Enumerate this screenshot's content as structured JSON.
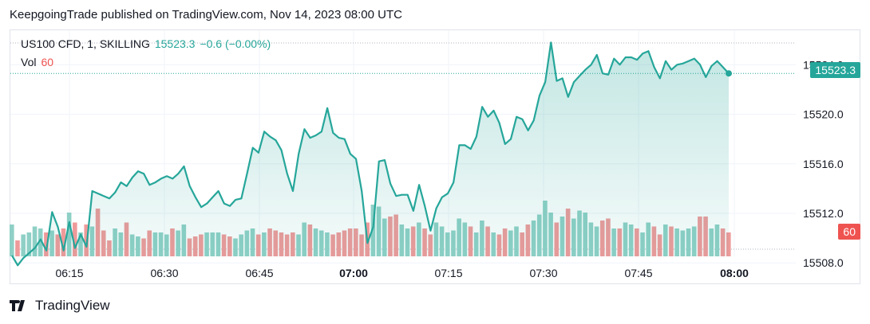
{
  "publisher_line": "KeepgoingTrade published on TradingView.com, Nov 14, 2023 08:00 UTC",
  "legend": {
    "symbol": "US100 CFD, 1, SKILLING",
    "last": "15523.3",
    "change": "−0.6 (−0.00%)"
  },
  "volume_legend": {
    "label": "Vol",
    "value": "60"
  },
  "price_label": "15523.3",
  "volume_label": "60",
  "brand": "TradingView",
  "colors": {
    "line": "#26a69a",
    "up_vol": "#8fd0c6",
    "down_vol": "#ef9a9a",
    "price_tag": "#26a69a",
    "vol_tag": "#ef5350"
  },
  "chart_data": {
    "type": "area",
    "x_axis": "time (UTC), 1-minute bars",
    "x_ticks": [
      "06:15",
      "06:30",
      "06:45",
      "07:00",
      "07:15",
      "07:30",
      "07:45",
      "08:00"
    ],
    "y_ticks": [
      15508.0,
      15512.0,
      15516.0,
      15520.0,
      15524.0
    ],
    "ylim": [
      15507.5,
      15525.5
    ],
    "series": [
      {
        "values": [
          15508.6,
          15507.8,
          15508.4,
          15508.8,
          15509.2,
          15509.9,
          15509.0,
          15512.1,
          15510.9,
          15509.0,
          15511.3,
          15509.2,
          15510.3,
          15509.3,
          15513.8,
          15513.6,
          15513.4,
          15513.2,
          15513.7,
          15514.5,
          15514.2,
          15514.9,
          15515.4,
          15515.2,
          15514.3,
          15514.5,
          15514.8,
          15515.0,
          15514.8,
          15515.2,
          15515.8,
          15514.2,
          15513.3,
          15512.5,
          15512.8,
          15513.3,
          15513.8,
          15512.8,
          15512.6,
          15513.1,
          15513.2,
          15515.2,
          15517.3,
          15516.9,
          15518.6,
          15518.2,
          15517.9,
          15517.1,
          15515.2,
          15513.8,
          15516.8,
          15518.8,
          15518.1,
          15518.3,
          15518.6,
          15520.5,
          15518.5,
          15518.1,
          15518.0,
          15516.8,
          15516.4,
          15513.8,
          15509.6,
          15510.9,
          15516.2,
          15516.3,
          15514.4,
          15513.4,
          15513.5,
          15513.5,
          15512.2,
          15514.3,
          15512.6,
          15510.6,
          15512.4,
          15513.3,
          15513.6,
          15514.5,
          15517.5,
          15517.5,
          15517.2,
          15518.2,
          15520.6,
          15519.8,
          15520.3,
          15519.3,
          15517.6,
          15518.0,
          15519.8,
          15519.6,
          15518.7,
          15519.5,
          15521.5,
          15522.6,
          15525.8,
          15522.7,
          15522.9,
          15521.4,
          15522.6,
          15523.1,
          15523.6,
          15524.0,
          15524.8,
          15523.3,
          15523.2,
          15524.5,
          15524.0,
          15524.6,
          15524.6,
          15524.4,
          15524.9,
          15525.1,
          15523.8,
          15522.9,
          15524.3,
          15523.6,
          15524.0,
          15524.1,
          15524.3,
          15524.5,
          15524.0,
          15523.0,
          15523.9,
          15524.3,
          15523.8,
          15523.3
        ]
      },
      {
        "name": "Vol",
        "values": [
          80,
          40,
          55,
          60,
          75,
          70,
          60,
          65,
          55,
          70,
          110,
          85,
          60,
          80,
          75,
          120,
          65,
          40,
          70,
          60,
          85,
          55,
          50,
          45,
          65,
          60,
          60,
          55,
          70,
          65,
          80,
          45,
          50,
          55,
          60,
          60,
          60,
          55,
          50,
          45,
          55,
          65,
          70,
          55,
          60,
          70,
          65,
          60,
          55,
          60,
          55,
          85,
          80,
          70,
          65,
          60,
          55,
          60,
          65,
          70,
          70,
          55,
          85,
          130,
          125,
          95,
          100,
          105,
          80,
          70,
          75,
          85,
          70,
          55,
          85,
          75,
          60,
          65,
          95,
          85,
          75,
          60,
          90,
          75,
          60,
          55,
          70,
          65,
          75,
          60,
          80,
          90,
          105,
          140,
          110,
          85,
          100,
          120,
          95,
          115,
          110,
          85,
          75,
          90,
          95,
          70,
          70,
          85,
          80,
          70,
          60,
          85,
          75,
          55,
          80,
          75,
          70,
          65,
          70,
          75,
          100,
          100,
          70,
          80,
          70,
          60
        ]
      }
    ]
  }
}
